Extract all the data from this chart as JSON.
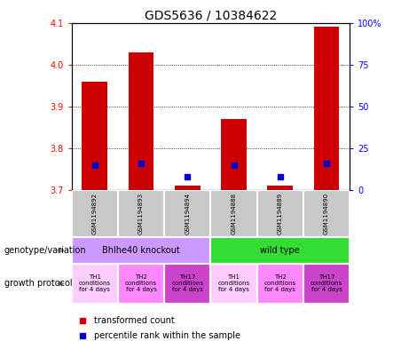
{
  "title": "GDS5636 / 10384622",
  "samples": [
    "GSM1194892",
    "GSM1194893",
    "GSM1194894",
    "GSM1194888",
    "GSM1194889",
    "GSM1194890"
  ],
  "transformed_counts": [
    3.96,
    4.03,
    3.71,
    3.87,
    3.71,
    4.09
  ],
  "percentile_ranks": [
    15,
    16,
    8,
    15,
    8,
    16
  ],
  "ylim_left": [
    3.7,
    4.1
  ],
  "ylim_right": [
    0,
    100
  ],
  "yticks_left": [
    3.7,
    3.8,
    3.9,
    4.0,
    4.1
  ],
  "yticks_right": [
    0,
    25,
    50,
    75,
    100
  ],
  "bar_color": "#cc0000",
  "dot_color": "#0000cc",
  "sample_bg": "#c8c8c8",
  "genotype_groups": [
    {
      "label": "Bhlhe40 knockout",
      "start": 0,
      "end": 3,
      "color": "#cc99ff"
    },
    {
      "label": "wild type",
      "start": 3,
      "end": 6,
      "color": "#33dd33"
    }
  ],
  "growth_colors": [
    "#ffccff",
    "#ff88ff",
    "#cc44cc",
    "#ffccff",
    "#ff88ff",
    "#cc44cc"
  ],
  "growth_labels": [
    "TH1\nconditions\nfor 4 days",
    "TH2\nconditions\nfor 4 days",
    "TH17\nconditions\nfor 4 days",
    "TH1\nconditions\nfor 4 days",
    "TH2\nconditions\nfor 4 days",
    "TH17\nconditions\nfor 4 days"
  ],
  "legend_red_label": "transformed count",
  "legend_blue_label": "percentile rank within the sample",
  "genotype_label": "genotype/variation",
  "growth_label": "growth protocol",
  "title_fontsize": 10,
  "tick_fontsize": 7,
  "sample_fontsize": 5,
  "geno_fontsize": 7,
  "growth_fontsize": 5,
  "legend_fontsize": 7,
  "label_fontsize": 7
}
